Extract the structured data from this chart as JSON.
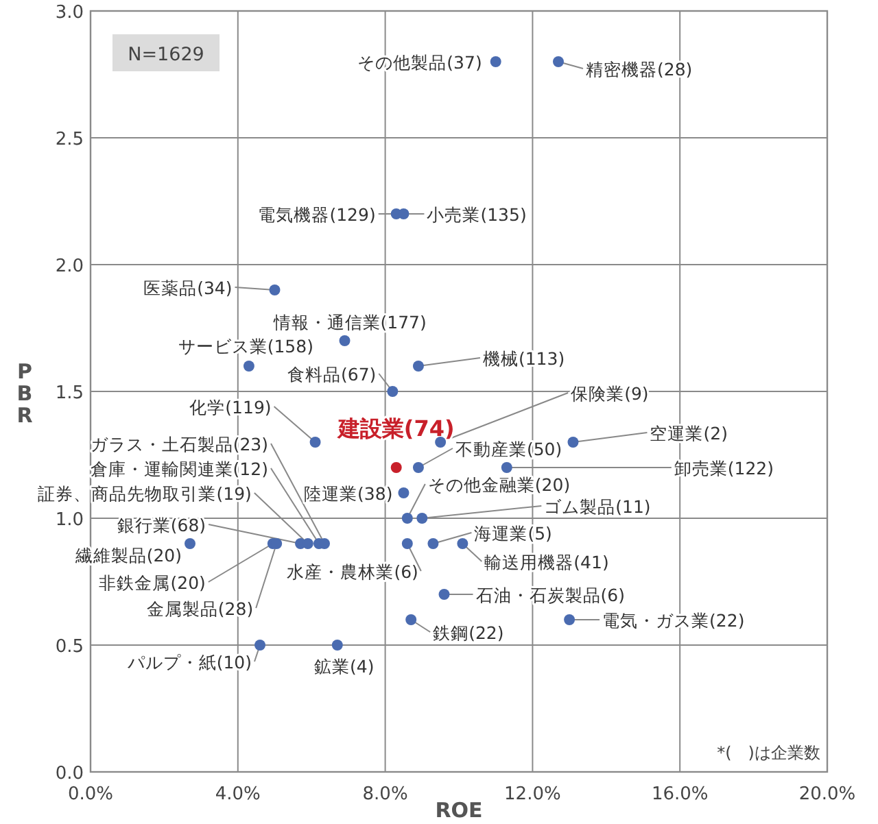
{
  "chart_data": {
    "type": "scatter",
    "xlabel": "ROE",
    "ylabel": "PBR",
    "xlim": [
      0,
      20
    ],
    "ylim": [
      0,
      3
    ],
    "xticks": [
      {
        "value": 0,
        "label": "0.0%"
      },
      {
        "value": 4,
        "label": "4.0%"
      },
      {
        "value": 8,
        "label": "8.0%"
      },
      {
        "value": 12,
        "label": "12.0%"
      },
      {
        "value": 16,
        "label": "16.0%"
      },
      {
        "value": 20,
        "label": "20.0%"
      }
    ],
    "yticks": [
      {
        "value": 0,
        "label": "0.0"
      },
      {
        "value": 0.5,
        "label": "0.5"
      },
      {
        "value": 1,
        "label": "1.0"
      },
      {
        "value": 1.5,
        "label": "1.5"
      },
      {
        "value": 2,
        "label": "2.0"
      },
      {
        "value": 2.5,
        "label": "2.5"
      },
      {
        "value": 3,
        "label": "3.0"
      }
    ],
    "grid": true,
    "marker": "circle",
    "series": [
      {
        "color": "#4a6bb0",
        "x": [
          11.0,
          12.7,
          8.3,
          8.5,
          5.0,
          6.9,
          4.3,
          8.9,
          8.2,
          6.1,
          8.3,
          9.5,
          8.9,
          13.1,
          11.3,
          8.5,
          8.6,
          9.0,
          9.3,
          10.1,
          8.6,
          9.6,
          13.0,
          8.7,
          6.7,
          4.6,
          2.7,
          4.95,
          5.05,
          5.7,
          5.9,
          6.2,
          6.35
        ],
        "values": [
          2.8,
          2.8,
          2.2,
          2.2,
          1.9,
          1.7,
          1.6,
          1.6,
          1.5,
          1.3,
          1.2,
          1.3,
          1.2,
          1.3,
          1.2,
          1.1,
          1.0,
          1.0,
          0.9,
          0.9,
          0.9,
          0.7,
          0.6,
          0.6,
          0.5,
          0.5,
          0.9,
          0.9,
          0.9,
          0.9,
          0.9,
          0.9,
          0.9
        ],
        "colors": [
          "#4a6bb0",
          "#4a6bb0",
          "#4a6bb0",
          "#4a6bb0",
          "#4a6bb0",
          "#4a6bb0",
          "#4a6bb0",
          "#4a6bb0",
          "#4a6bb0",
          "#4a6bb0",
          "#c8202a",
          "#4a6bb0",
          "#4a6bb0",
          "#4a6bb0",
          "#4a6bb0",
          "#4a6bb0",
          "#4a6bb0",
          "#4a6bb0",
          "#4a6bb0",
          "#4a6bb0",
          "#4a6bb0",
          "#4a6bb0",
          "#4a6bb0",
          "#4a6bb0",
          "#4a6bb0",
          "#4a6bb0",
          "#4a6bb0",
          "#4a6bb0",
          "#4a6bb0",
          "#4a6bb0",
          "#4a6bb0",
          "#4a6bb0",
          "#4a6bb0"
        ]
      }
    ],
    "annotations": [
      "N=1629",
      "*(　)は企業数",
      {
        "text": "その他製品(37)",
        "x": 11.0,
        "y": 2.8
      },
      {
        "text": "精密機器(28)",
        "x": 12.7,
        "y": 2.8
      },
      {
        "text": "電気機器(129)",
        "x": 8.3,
        "y": 2.2
      },
      {
        "text": "小売業(135)",
        "x": 8.5,
        "y": 2.2
      },
      {
        "text": "医薬品(34)",
        "x": 5.0,
        "y": 1.9
      },
      {
        "text": "情報・通信業(177)",
        "x": 6.9,
        "y": 1.7
      },
      {
        "text": "サービス業(158)",
        "x": 4.3,
        "y": 1.6
      },
      {
        "text": "機械(113)",
        "x": 8.9,
        "y": 1.6
      },
      {
        "text": "食料品(67)",
        "x": 8.2,
        "y": 1.5
      },
      {
        "text": "化学(119)",
        "x": 6.1,
        "y": 1.3
      },
      {
        "text": "建設業(74)",
        "x": 8.3,
        "y": 1.2
      },
      {
        "text": "保険業(9)",
        "x": 9.5,
        "y": 1.3
      },
      {
        "text": "不動産業(50)",
        "x": 8.9,
        "y": 1.2
      },
      {
        "text": "空運業(2)",
        "x": 13.1,
        "y": 1.3
      },
      {
        "text": "卸売業(122)",
        "x": 11.3,
        "y": 1.2
      },
      {
        "text": "陸運業(38)",
        "x": 8.5,
        "y": 1.1
      },
      {
        "text": "その他金融業(20)",
        "x": 8.6,
        "y": 1.0
      },
      {
        "text": "ゴム製品(11)",
        "x": 9.0,
        "y": 1.0
      },
      {
        "text": "海運業(5)",
        "x": 9.3,
        "y": 0.9
      },
      {
        "text": "輸送用機器(41)",
        "x": 10.1,
        "y": 0.9
      },
      {
        "text": "水産・農林業(6)",
        "x": 8.6,
        "y": 0.9
      },
      {
        "text": "石油・石炭製品(6)",
        "x": 9.6,
        "y": 0.7
      },
      {
        "text": "電気・ガス業(22)",
        "x": 13.0,
        "y": 0.6
      },
      {
        "text": "鉄鋼(22)",
        "x": 8.7,
        "y": 0.6
      },
      {
        "text": "鉱業(4)",
        "x": 6.7,
        "y": 0.5
      },
      {
        "text": "パルプ・紙(10)",
        "x": 4.6,
        "y": 0.5
      },
      {
        "text": "繊維製品(20)",
        "x": 2.7,
        "y": 0.9
      },
      {
        "text": "非鉄金属(20)",
        "x": 4.95,
        "y": 0.9
      },
      {
        "text": "金属製品(28)",
        "x": 5.05,
        "y": 0.9
      },
      {
        "text": "銀行業(68)",
        "x": 5.7,
        "y": 0.9
      },
      {
        "text": "証券、商品先物取引業(19)",
        "x": 5.9,
        "y": 0.9
      },
      {
        "text": "倉庫・運輸関連業(12)",
        "x": 6.2,
        "y": 0.9
      },
      {
        "text": "ガラス・土石製品(23)",
        "x": 6.35,
        "y": 0.9
      }
    ]
  }
}
